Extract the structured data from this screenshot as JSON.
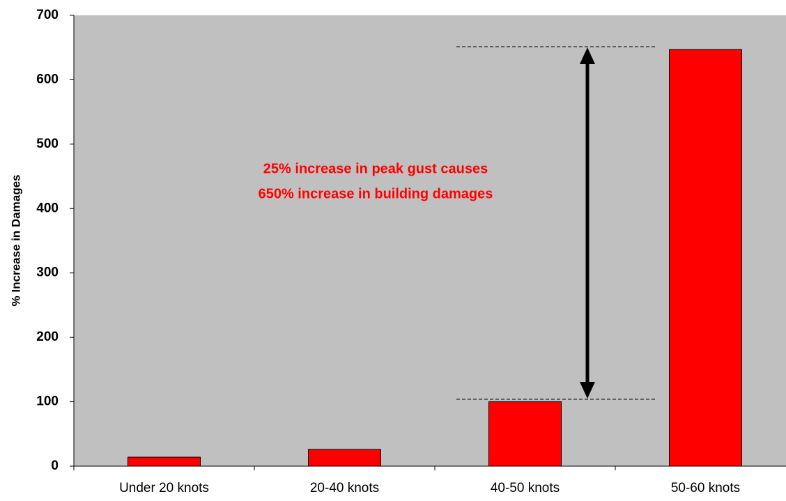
{
  "chart_data": {
    "type": "bar",
    "y_label": "% Increase in Damages",
    "annotations": [
      "25% increase in peak gust causes",
      "650% increase in building damages"
    ],
    "categories": [
      "Under 20 knots",
      "20-40 knots",
      "40-50 knots",
      "50-60 knots"
    ],
    "values": [
      14,
      26,
      100,
      647
    ],
    "color": "#ff0000",
    "ylim": [
      0,
      700
    ],
    "yticks": [
      0,
      100,
      200,
      300,
      400,
      500,
      600,
      700
    ],
    "plot_background": "#c0c0c0",
    "grid": false
  }
}
